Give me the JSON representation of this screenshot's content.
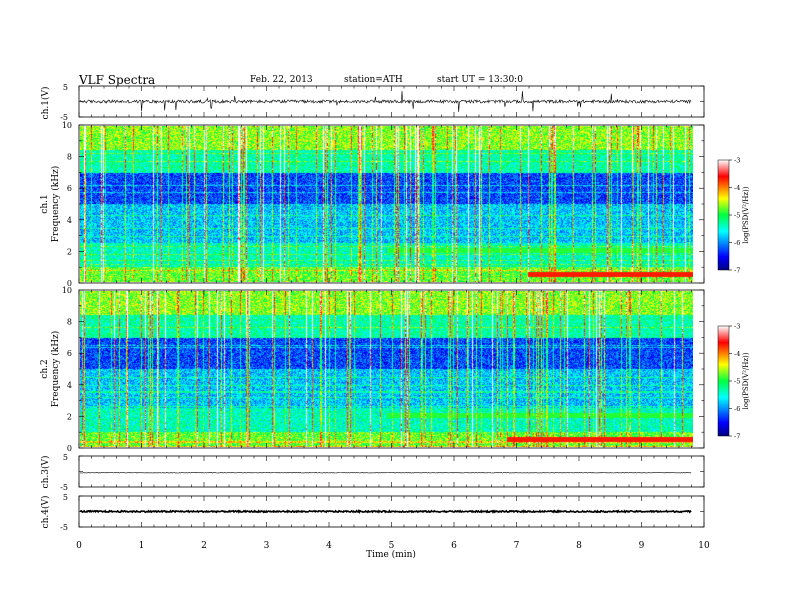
{
  "header": {
    "title": "VLF  Spectra",
    "date": "Feb. 22, 2013",
    "station": "station=ATH",
    "start_ut": "start  UT  =   13:30:0"
  },
  "chart_data": [
    {
      "type": "line",
      "ylabel": "ch.1(V)",
      "ylim": [
        -5,
        5
      ],
      "yticks": [
        "5",
        "-5"
      ],
      "xlim": [
        0,
        10
      ],
      "series": [
        {
          "baseline": 0.0,
          "noise": "impulsive sferics, spikes up to ±5"
        }
      ]
    },
    {
      "type": "heatmap",
      "ylabel": [
        "ch.1",
        "Frequency  (kHz)"
      ],
      "ylim": [
        0,
        10
      ],
      "yticks": [
        "0",
        "2",
        "4",
        "6",
        "8",
        "10"
      ],
      "xlim": [
        0,
        9.8
      ],
      "colorbar": {
        "label": "log(PSD(V²/Hz))",
        "range": [
          -7,
          -3
        ],
        "ticks": [
          "-3",
          "-4",
          "-5",
          "-6",
          "-7"
        ]
      }
    },
    {
      "type": "heatmap",
      "ylabel": [
        "ch.2",
        "Frequency  (kHz)"
      ],
      "ylim": [
        0,
        10
      ],
      "yticks": [
        "0",
        "2",
        "4",
        "6",
        "8",
        "10"
      ],
      "xlim": [
        0,
        9.8
      ],
      "colorbar": {
        "label": "log(PSD(V²/Hz))",
        "range": [
          -7,
          -3
        ],
        "ticks": [
          "-3",
          "-4",
          "-5",
          "-6",
          "-7"
        ]
      }
    },
    {
      "type": "line",
      "ylabel": "ch.3(V)",
      "ylim": [
        -5,
        5
      ],
      "yticks": [
        "5",
        "-5"
      ],
      "xlim": [
        0,
        10
      ],
      "series": [
        {
          "baseline": -0.4
        }
      ]
    },
    {
      "type": "line",
      "ylabel": "ch.4(V)",
      "ylim": [
        -5,
        5
      ],
      "yticks": [
        "5",
        "-5"
      ],
      "xlim": [
        0,
        10
      ],
      "series": [
        {
          "baseline": 0.0
        }
      ]
    }
  ],
  "xaxis": {
    "label": "Time  (min)",
    "ticks": [
      "0",
      "1",
      "2",
      "3",
      "4",
      "5",
      "6",
      "7",
      "8",
      "9",
      "10"
    ]
  }
}
